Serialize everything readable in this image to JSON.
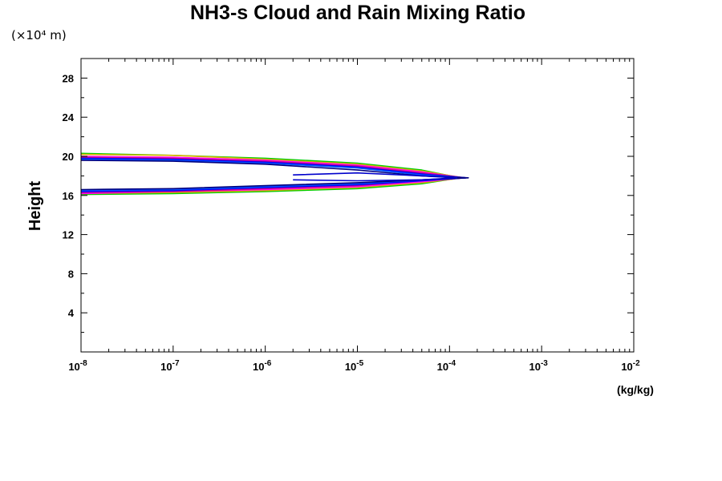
{
  "chart_data": {
    "type": "line",
    "title": "NH3-s Cloud and Rain Mixing Ratio",
    "ylabel": "Height",
    "y_unit_label": "(×10⁴ m)",
    "xlabel": "(kg/kg)",
    "x_scale": "log",
    "xlim": [
      1e-08,
      0.01
    ],
    "ylim": [
      0,
      30
    ],
    "x_ticks": [
      {
        "base": "10",
        "exp": "-8"
      },
      {
        "base": "10",
        "exp": "-7"
      },
      {
        "base": "10",
        "exp": "-6"
      },
      {
        "base": "10",
        "exp": "-5"
      },
      {
        "base": "10",
        "exp": "-4"
      },
      {
        "base": "10",
        "exp": "-3"
      },
      {
        "base": "10",
        "exp": "-2"
      }
    ],
    "y_ticks": [
      "4",
      "8",
      "12",
      "16",
      "20",
      "24",
      "28"
    ],
    "grid": false,
    "series": [
      {
        "color": "#00cc00",
        "values": [
          [
            1e-08,
            16.1
          ],
          [
            1e-07,
            16.2
          ],
          [
            1e-06,
            16.4
          ],
          [
            1e-05,
            16.7
          ],
          [
            5e-05,
            17.2
          ],
          [
            0.00013,
            17.8
          ],
          [
            5e-05,
            18.6
          ],
          [
            1e-05,
            19.3
          ],
          [
            1e-06,
            19.8
          ],
          [
            1e-07,
            20.1
          ],
          [
            1e-08,
            20.3
          ]
        ]
      },
      {
        "color": "#e0b000",
        "values": [
          [
            1e-08,
            16.2
          ],
          [
            1e-07,
            16.3
          ],
          [
            1e-06,
            16.5
          ],
          [
            1e-05,
            16.8
          ],
          [
            5e-05,
            17.3
          ],
          [
            0.00014,
            17.8
          ],
          [
            5e-05,
            18.5
          ],
          [
            1e-05,
            19.2
          ],
          [
            1e-06,
            19.7
          ],
          [
            1e-07,
            20.1
          ],
          [
            1e-08,
            20.2
          ]
        ]
      },
      {
        "color": "#ff00ff",
        "values": [
          [
            1e-08,
            16.2
          ],
          [
            1e-07,
            16.4
          ],
          [
            1e-06,
            16.6
          ],
          [
            1e-05,
            16.9
          ],
          [
            5e-05,
            17.4
          ],
          [
            0.00014,
            17.8
          ],
          [
            5e-05,
            18.4
          ],
          [
            1e-05,
            19.1
          ],
          [
            1e-06,
            19.6
          ],
          [
            1e-07,
            19.9
          ],
          [
            1e-08,
            20.0
          ]
        ]
      },
      {
        "color": "#cc0088",
        "values": [
          [
            1e-08,
            16.3
          ],
          [
            1e-07,
            16.4
          ],
          [
            1e-06,
            16.7
          ],
          [
            1e-05,
            17.0
          ],
          [
            5e-05,
            17.5
          ],
          [
            0.00015,
            17.8
          ],
          [
            5e-05,
            18.3
          ],
          [
            1e-05,
            19.0
          ],
          [
            1e-06,
            19.5
          ],
          [
            1e-07,
            19.8
          ],
          [
            1e-08,
            19.9
          ]
        ]
      },
      {
        "color": "#0000ff",
        "values": [
          [
            1e-08,
            16.4
          ],
          [
            1e-07,
            16.5
          ],
          [
            1e-06,
            16.8
          ],
          [
            1e-05,
            17.1
          ],
          [
            5e-05,
            17.5
          ],
          [
            0.00015,
            17.8
          ],
          [
            5e-05,
            18.2
          ],
          [
            1e-05,
            18.9
          ],
          [
            1e-06,
            19.4
          ],
          [
            1e-07,
            19.7
          ],
          [
            1e-08,
            19.8
          ]
        ]
      },
      {
        "color": "#0055ff",
        "values": [
          [
            1e-08,
            16.5
          ],
          [
            1e-07,
            16.6
          ],
          [
            1e-06,
            16.9
          ],
          [
            1e-05,
            17.2
          ],
          [
            5e-05,
            17.6
          ],
          [
            0.00015,
            17.8
          ],
          [
            5e-05,
            18.1
          ],
          [
            1e-05,
            18.8
          ],
          [
            1e-06,
            19.3
          ],
          [
            1e-07,
            19.6
          ],
          [
            1e-08,
            19.7
          ]
        ]
      },
      {
        "color": "#000080",
        "values": [
          [
            1e-08,
            16.6
          ],
          [
            1e-07,
            16.7
          ],
          [
            1e-06,
            17.0
          ],
          [
            1e-05,
            17.3
          ],
          [
            5e-05,
            17.6
          ],
          [
            0.00016,
            17.8
          ],
          [
            5e-05,
            18.0
          ],
          [
            1e-05,
            18.6
          ],
          [
            1e-06,
            19.2
          ],
          [
            1e-07,
            19.5
          ],
          [
            1e-08,
            19.6
          ]
        ]
      },
      {
        "color": "#0000cc",
        "values": [
          [
            2e-06,
            17.6
          ],
          [
            1e-05,
            17.5
          ],
          [
            5e-05,
            17.6
          ],
          [
            0.00012,
            17.8
          ],
          [
            5e-05,
            18.0
          ],
          [
            1e-05,
            18.3
          ],
          [
            2e-06,
            18.1
          ]
        ]
      }
    ]
  }
}
